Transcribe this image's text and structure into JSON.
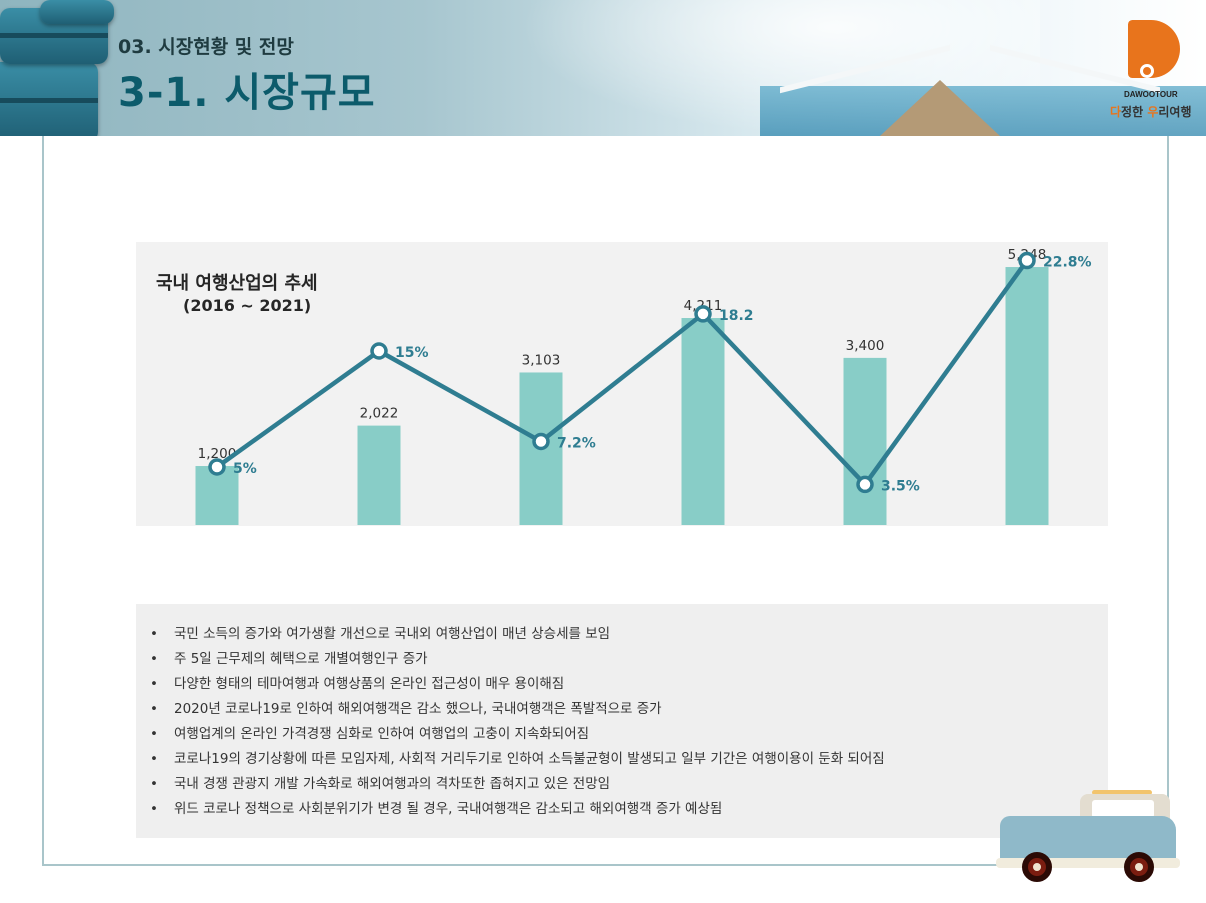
{
  "header": {
    "section_label": "03. 시장현황 및 전망",
    "page_title": "3-1. 시장규모"
  },
  "logo": {
    "brand_name": "DAWOOTOUR",
    "slogan_part1": "다",
    "slogan_part2": "정한 ",
    "slogan_part3": "우",
    "slogan_part4": "리여행",
    "brand_color": "#e8741c"
  },
  "chart_data": {
    "type": "bar",
    "title": "국내 여행산업의 추세",
    "subtitle": "(2016 ~ 2021)",
    "categories": [
      "",
      "",
      "",
      "",
      "",
      ""
    ],
    "series": [
      {
        "type": "bar",
        "values": [
          1200,
          2022,
          3103,
          4211,
          3400,
          5248
        ],
        "labels": [
          "1,200",
          "2,022",
          "3,103",
          "4,211",
          "3,400",
          "5,248"
        ],
        "color": "#88cdc7"
      },
      {
        "type": "line",
        "values": [
          5,
          15,
          7.2,
          18.2,
          3.5,
          22.8
        ],
        "labels": [
          "5%",
          "15%",
          "7.2%",
          "18.2",
          "3.5%",
          "22.8%"
        ],
        "color": "#2f7d91"
      }
    ],
    "bar_ylim": [
      0,
      5900
    ],
    "line_ylim": [
      0,
      25
    ],
    "grid": false,
    "legend": "none"
  },
  "bullets": [
    "국민 소득의 증가와 여가생활 개선으로 국내외 여행산업이 매년 상승세를 보임",
    "주 5일 근무제의 혜택으로 개별여행인구 증가",
    "다양한 형태의 테마여행과 여행상품의 온라인 접근성이 매우 용이해짐",
    "2020년 코로나19로 인하여 해외여행객은 감소 했으나, 국내여행객은 폭발적으로 증가",
    "여행업계의 온라인 가격경쟁 심화로 인하여 여행업의 고충이 지속화되어짐",
    "코로나19의 경기상황에 따른 모임자제, 사회적 거리두기로 인하여 소득불균형이 발생되고 일부 기간은 여행이용이 둔화 되어짐",
    "국내 경쟁 관광지 개발 가속화로 해외여행과의 격차또한 좁혀지고 있은 전망임",
    "위드 코로나 정책으로 사회분위기가 변경 될 경우, 국내여행객은 감소되고 해외여행객 증가 예상됨"
  ],
  "bullet_symbol": "•",
  "icons": [
    "suitcase-illustration",
    "pier-photo",
    "van-illustration"
  ]
}
